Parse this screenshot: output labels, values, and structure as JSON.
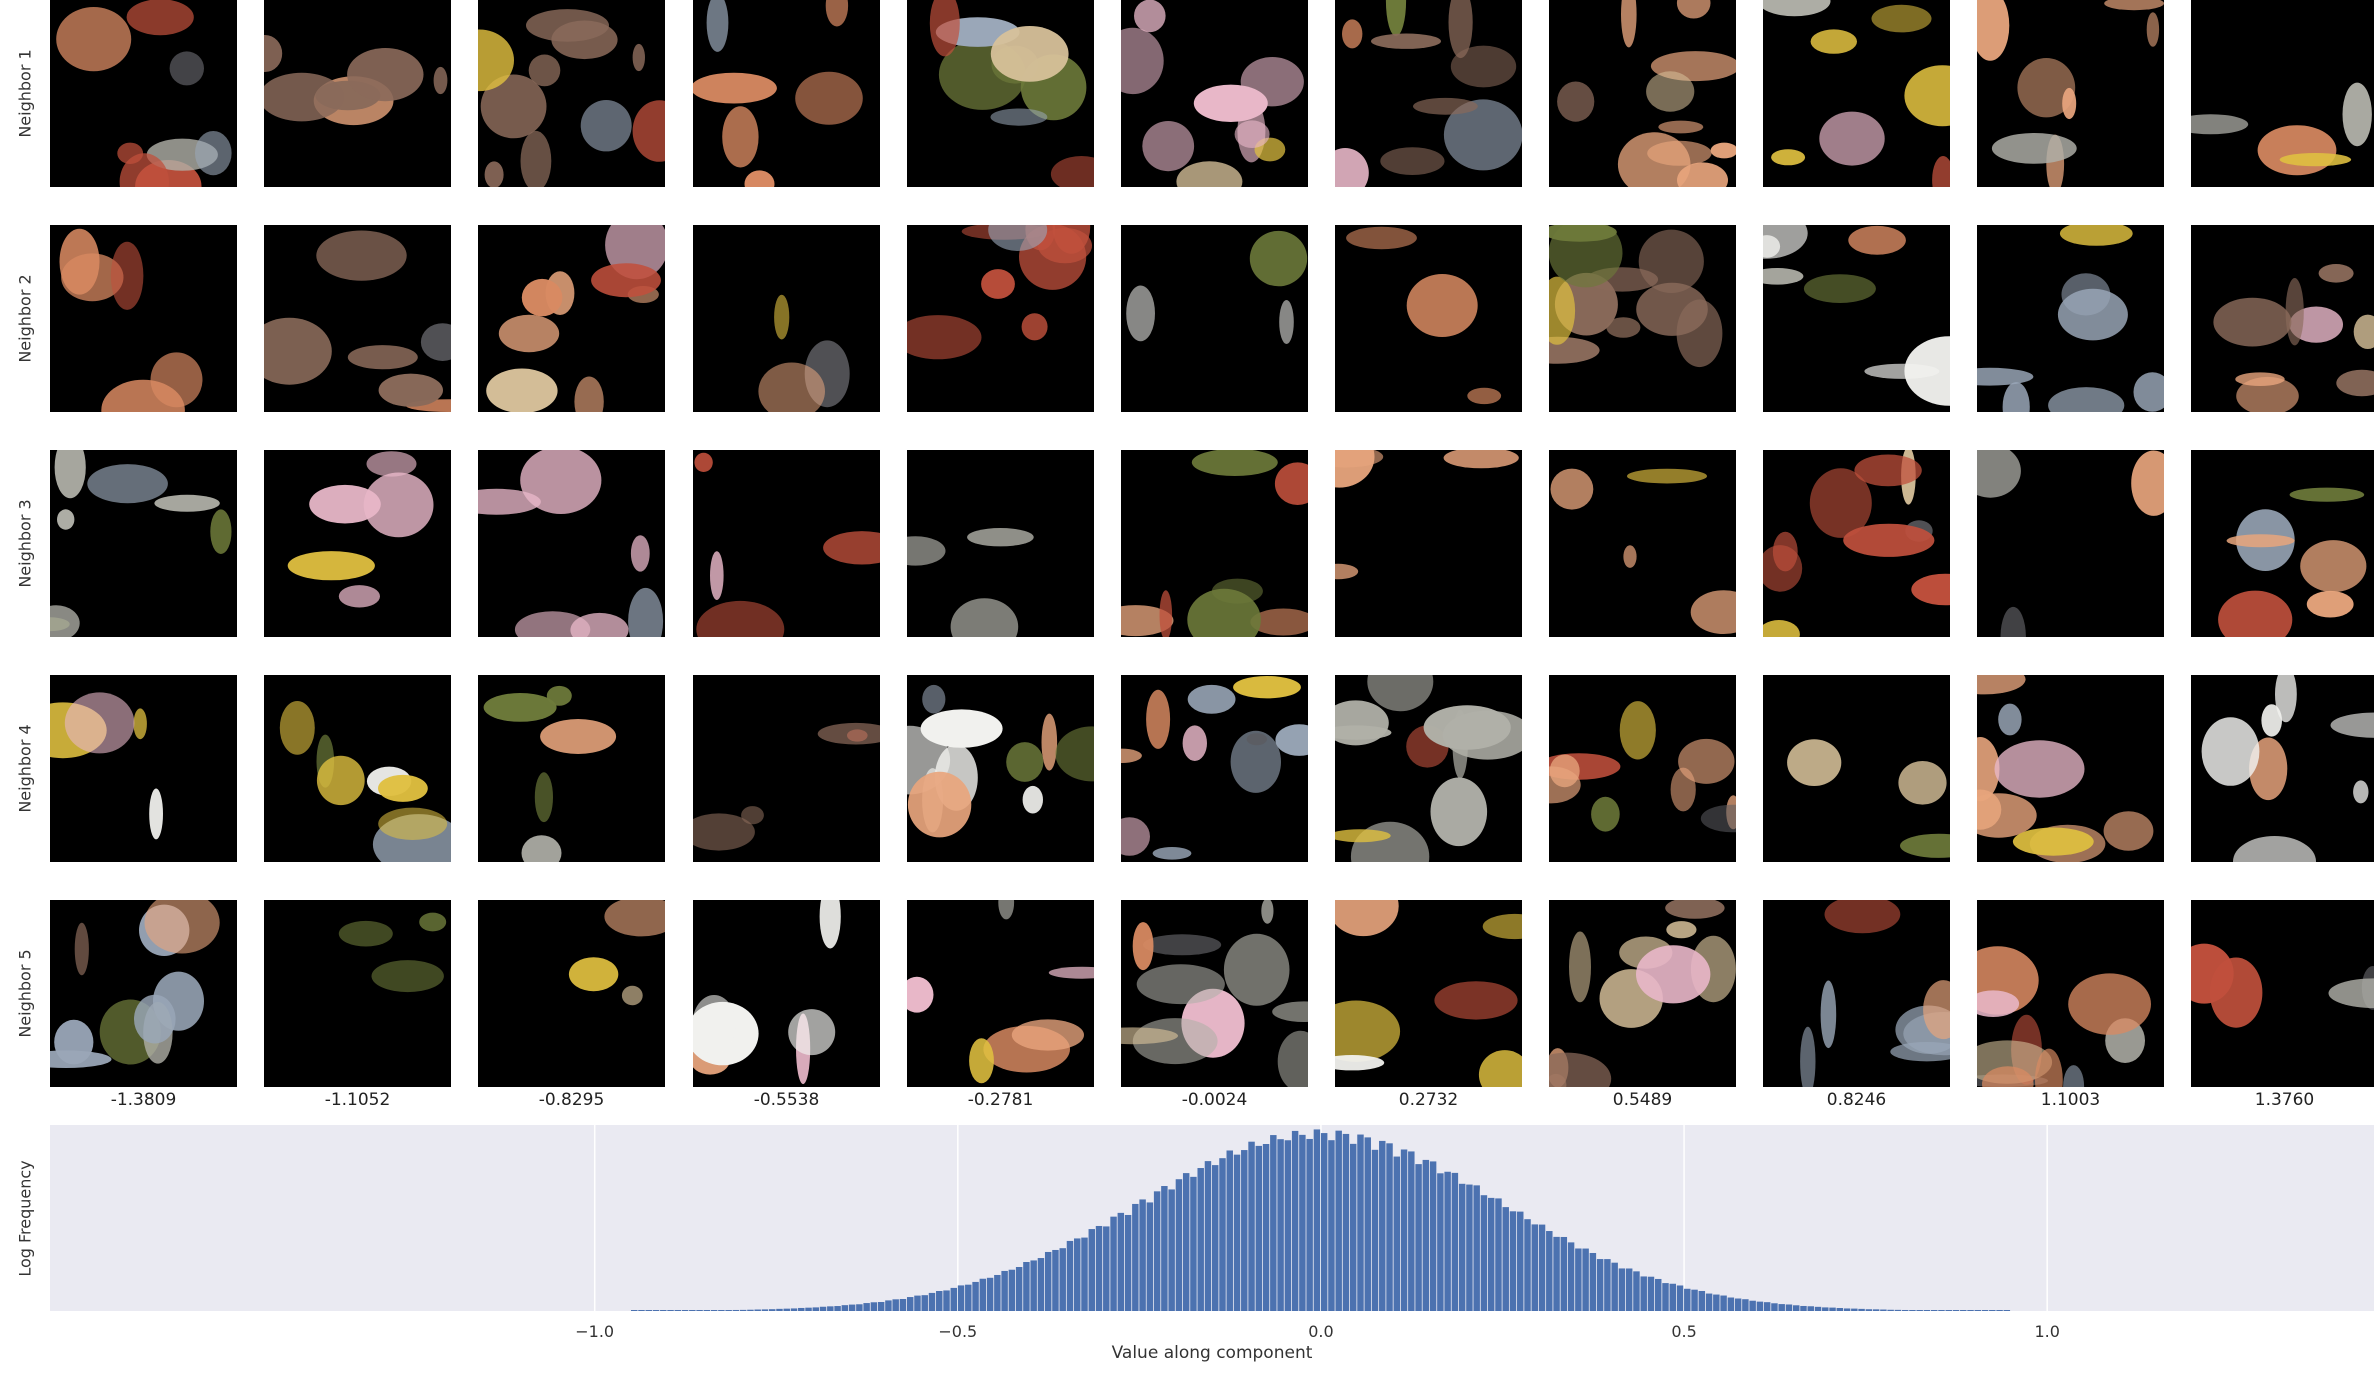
{
  "chart_data": {
    "type": "bar",
    "title": "",
    "row_labels": [
      "Neighbor 1",
      "Neighbor 2",
      "Neighbor 3",
      "Neighbor 4",
      "Neighbor 5"
    ],
    "column_values": [
      "-1.3809",
      "-1.1052",
      "-0.8295",
      "-0.5538",
      "-0.2781",
      "-0.0024",
      "0.2732",
      "0.5489",
      "0.8246",
      "1.1003",
      "1.3760"
    ],
    "histogram": {
      "xlabel": "Value along component",
      "ylabel": "Log Frequency",
      "xlim": [
        -1.75,
        1.45
      ],
      "xticks": [
        -1.0,
        -0.5,
        0.0,
        0.5,
        1.0
      ],
      "xtick_labels": [
        "−1.0",
        "−0.5",
        "0.0",
        "0.5",
        "1.0"
      ],
      "bin_start": -0.95,
      "bin_width": 0.01,
      "mean": 0.0,
      "std": 0.25,
      "bin_count": 190,
      "grid": true,
      "bar_color": "#4c72b0",
      "background_color": "#eaeaf2"
    },
    "tile_palette": [
      "#e8a57d",
      "#d98a62",
      "#b0b0a8",
      "#c0503c",
      "#f1f1ee",
      "#8a6a5a",
      "#d7c19a",
      "#6d7a3a",
      "#9aa7b8",
      "#e8b7c8",
      "#5b5b60",
      "#e0c040"
    ]
  }
}
